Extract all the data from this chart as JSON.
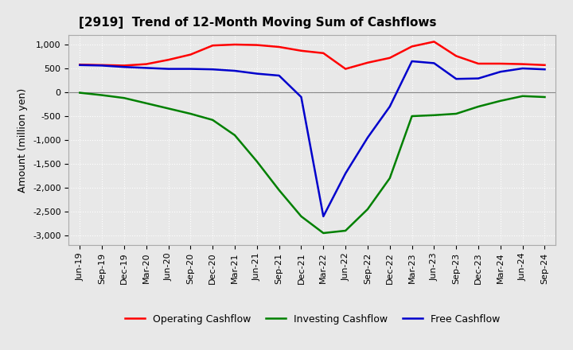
{
  "title": "[2919]  Trend of 12-Month Moving Sum of Cashflows",
  "ylabel": "Amount (million yen)",
  "x_labels": [
    "Jun-19",
    "Sep-19",
    "Dec-19",
    "Mar-20",
    "Jun-20",
    "Sep-20",
    "Dec-20",
    "Mar-21",
    "Jun-21",
    "Sep-21",
    "Dec-21",
    "Mar-22",
    "Jun-22",
    "Sep-22",
    "Dec-22",
    "Mar-23",
    "Jun-23",
    "Sep-23",
    "Dec-23",
    "Mar-24",
    "Jun-24",
    "Sep-24"
  ],
  "operating": [
    580,
    570,
    560,
    590,
    680,
    790,
    980,
    1000,
    990,
    950,
    870,
    820,
    490,
    620,
    720,
    960,
    1060,
    760,
    600,
    600,
    590,
    570
  ],
  "investing": [
    -10,
    -60,
    -120,
    -230,
    -340,
    -450,
    -580,
    -900,
    -1450,
    -2050,
    -2600,
    -2950,
    -2900,
    -2450,
    -1800,
    -500,
    -480,
    -450,
    -300,
    -180,
    -80,
    -100
  ],
  "free": [
    570,
    560,
    530,
    510,
    490,
    490,
    480,
    450,
    390,
    350,
    -100,
    -2600,
    -1700,
    -950,
    -300,
    650,
    610,
    280,
    290,
    430,
    500,
    480
  ],
  "ylim": [
    -3200,
    1200
  ],
  "yticks": [
    1000,
    500,
    0,
    -500,
    -1000,
    -1500,
    -2000,
    -2500,
    -3000
  ],
  "operating_color": "#ff0000",
  "investing_color": "#008000",
  "free_color": "#0000cc",
  "bg_color": "#e8e8e8",
  "plot_bg_color": "#e8e8e8",
  "grid_color": "#ffffff",
  "title_fontsize": 11,
  "label_fontsize": 9,
  "tick_fontsize": 8,
  "legend_fontsize": 9
}
